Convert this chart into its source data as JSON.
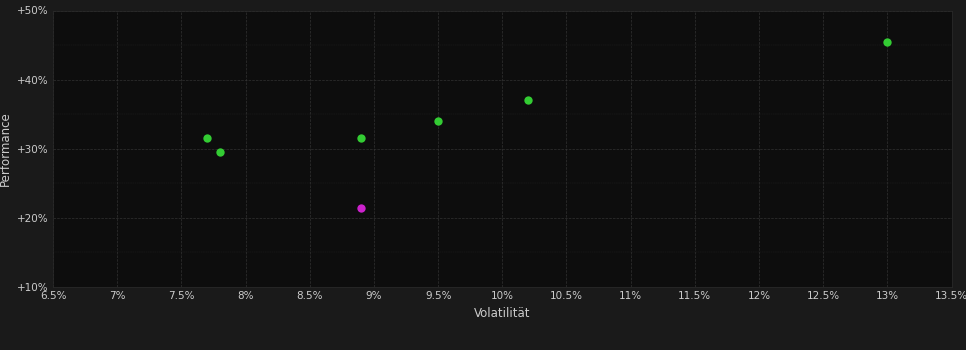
{
  "background_color": "#1a1a1a",
  "plot_bg_color": "#0d0d0d",
  "grid_color": "#3a3a3a",
  "grid_style": "--",
  "xlabel": "Volatilität",
  "ylabel": "Performance",
  "xlabel_color": "#cccccc",
  "ylabel_color": "#cccccc",
  "tick_label_color": "#cccccc",
  "tick_color": "#cccccc",
  "xlim": [
    0.065,
    0.135
  ],
  "ylim": [
    0.1,
    0.5
  ],
  "xtick_values": [
    0.065,
    0.07,
    0.075,
    0.08,
    0.085,
    0.09,
    0.095,
    0.1,
    0.105,
    0.11,
    0.115,
    0.12,
    0.125,
    0.13,
    0.135
  ],
  "xtick_labels": [
    "6.5%",
    "7%",
    "7.5%",
    "8%",
    "8.5%",
    "9%",
    "9.5%",
    "10%",
    "10.5%",
    "11%",
    "11.5%",
    "12%",
    "12.5%",
    "13%",
    "13.5%"
  ],
  "ytick_values": [
    0.1,
    0.2,
    0.3,
    0.4,
    0.5
  ],
  "ytick_labels": [
    "+10%",
    "+20%",
    "+30%",
    "+40%",
    "+50%"
  ],
  "green_points": [
    [
      0.077,
      0.315
    ],
    [
      0.078,
      0.295
    ],
    [
      0.089,
      0.315
    ],
    [
      0.095,
      0.34
    ],
    [
      0.102,
      0.37
    ],
    [
      0.13,
      0.455
    ]
  ],
  "magenta_points": [
    [
      0.089,
      0.215
    ]
  ],
  "green_color": "#33cc33",
  "magenta_color": "#cc22cc",
  "marker_size": 6,
  "marker_style": "o"
}
